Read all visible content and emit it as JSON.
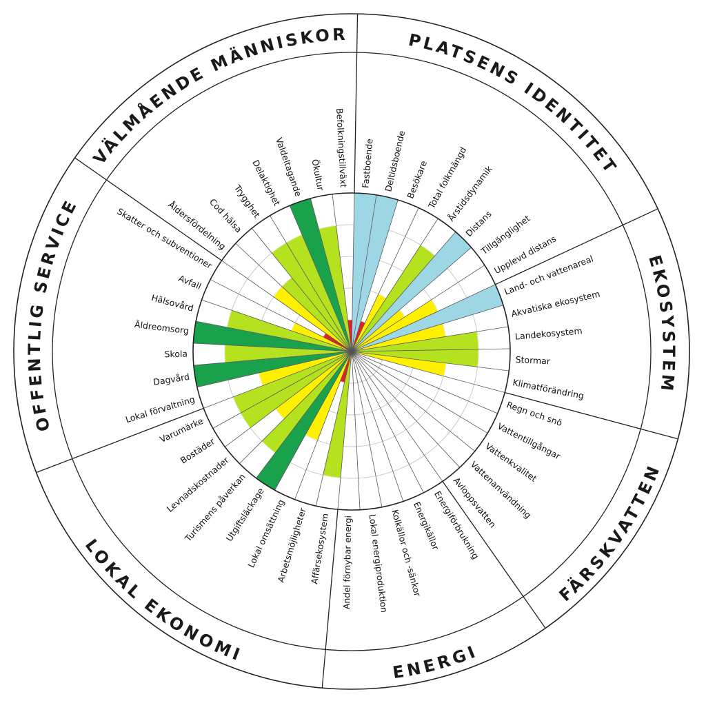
{
  "chart_data": {
    "type": "polar-bar",
    "scale": {
      "max": 5
    },
    "colors": {
      "level_1": "#e32026",
      "level_2": "#fff000",
      "level_3": "#b5e21f",
      "level_4": "#1aa14b",
      "context": "#9dd7e6"
    },
    "sectors": [
      {
        "title": "PLATSENS IDENTITET",
        "indicators": [
          {
            "label": "Fastboende",
            "value": 5,
            "color": "context"
          },
          {
            "label": "Deltidsboende",
            "value": 5,
            "color": "context"
          },
          {
            "label": "Besökare",
            "value": 1,
            "color": "level_1"
          },
          {
            "label": "Total folkmängd",
            "value": 2,
            "color": "level_2"
          },
          {
            "label": "Årstidsdynamik",
            "value": 4,
            "color": "level_3"
          },
          {
            "label": "Distans",
            "value": 5,
            "color": "context"
          },
          {
            "label": "Tillgänglighet",
            "value": 2,
            "color": "level_2"
          },
          {
            "label": "Upplevd distans",
            "value": 3,
            "color": "level_2"
          }
        ]
      },
      {
        "title": "EKOSYSTEM",
        "indicators": [
          {
            "label": "Land- och vattenareal",
            "value": 5,
            "color": "context"
          },
          {
            "label": "Akvatiska ekosystem",
            "value": 3,
            "color": "level_2"
          },
          {
            "label": "Landekosystem",
            "value": 4,
            "color": "level_3"
          },
          {
            "label": "Stormar",
            "value": 4,
            "color": "level_3"
          },
          {
            "label": "Klimatförändring",
            "value": 3,
            "color": "level_2"
          }
        ]
      },
      {
        "title": "FÄRSKVATTEN",
        "indicators": [
          {
            "label": "Regn och snö",
            "value": 0,
            "color": "level_1"
          },
          {
            "label": "Vattentillgångar",
            "value": 0,
            "color": "level_1"
          },
          {
            "label": "Vattenkvalitet",
            "value": 0,
            "color": "level_1"
          },
          {
            "label": "Vattenanvändning",
            "value": 0,
            "color": "level_1"
          },
          {
            "label": "Avloppsvatten",
            "value": 0,
            "color": "level_1"
          }
        ]
      },
      {
        "title": "ENERGI",
        "indicators": [
          {
            "label": "Energiförbrukning",
            "value": 0,
            "color": "level_1"
          },
          {
            "label": "Energikällor",
            "value": 0,
            "color": "level_1"
          },
          {
            "label": "Kolkällor och -sänkor",
            "value": 0,
            "color": "level_1"
          },
          {
            "label": "Lokal energiproduktion",
            "value": 0,
            "color": "level_1"
          },
          {
            "label": "Andel förnybar energi",
            "value": 0,
            "color": "level_1"
          }
        ]
      },
      {
        "title": "LOKAL EKONOMI",
        "indicators": [
          {
            "label": "Affärsekosystem",
            "value": 4,
            "color": "level_3"
          },
          {
            "label": "Arbetsmöjligheter",
            "value": 1,
            "color": "level_1"
          },
          {
            "label": "Lokal omsättning",
            "value": 3,
            "color": "level_2"
          },
          {
            "label": "Utgiftsläckage",
            "value": 5,
            "color": "level_4"
          },
          {
            "label": "Turismens påverkan",
            "value": 4,
            "color": "level_3"
          },
          {
            "label": "Levnadskostnader",
            "value": 3,
            "color": "level_2"
          },
          {
            "label": "Bostäder",
            "value": 4,
            "color": "level_3"
          },
          {
            "label": "Varumärke",
            "value": 4,
            "color": "level_3"
          }
        ]
      },
      {
        "title": "OFFENTLIG SERVICE",
        "indicators": [
          {
            "label": "Lokal förvaltning",
            "value": 3,
            "color": "level_2"
          },
          {
            "label": "Dagvård",
            "value": 5,
            "color": "level_4"
          },
          {
            "label": "Skola",
            "value": 4,
            "color": "level_3"
          },
          {
            "label": "Äldreomsorg",
            "value": 5,
            "color": "level_4"
          },
          {
            "label": "Hälsovård",
            "value": 4,
            "color": "level_3"
          },
          {
            "label": "Avfall",
            "value": 2,
            "color": "level_2"
          },
          {
            "label": "Skatter och subventioner",
            "value": 1,
            "color": "level_1"
          }
        ]
      },
      {
        "title": "VÄLMÅENDE MÄNNISKOR",
        "indicators": [
          {
            "label": "Åldersfördelning",
            "value": 3,
            "color": "level_2"
          },
          {
            "label": "Cod hälsa",
            "value": 3,
            "color": "level_3"
          },
          {
            "label": "Trygghet",
            "value": 4,
            "color": "level_3"
          },
          {
            "label": "Delaktighet",
            "value": 4,
            "color": "level_3"
          },
          {
            "label": "Valdeltagande",
            "value": 5,
            "color": "level_4"
          },
          {
            "label": "Ökultur",
            "value": 4,
            "color": "level_3"
          },
          {
            "label": "Befolkningstillväxt",
            "value": 1,
            "color": "level_1"
          }
        ]
      }
    ]
  }
}
